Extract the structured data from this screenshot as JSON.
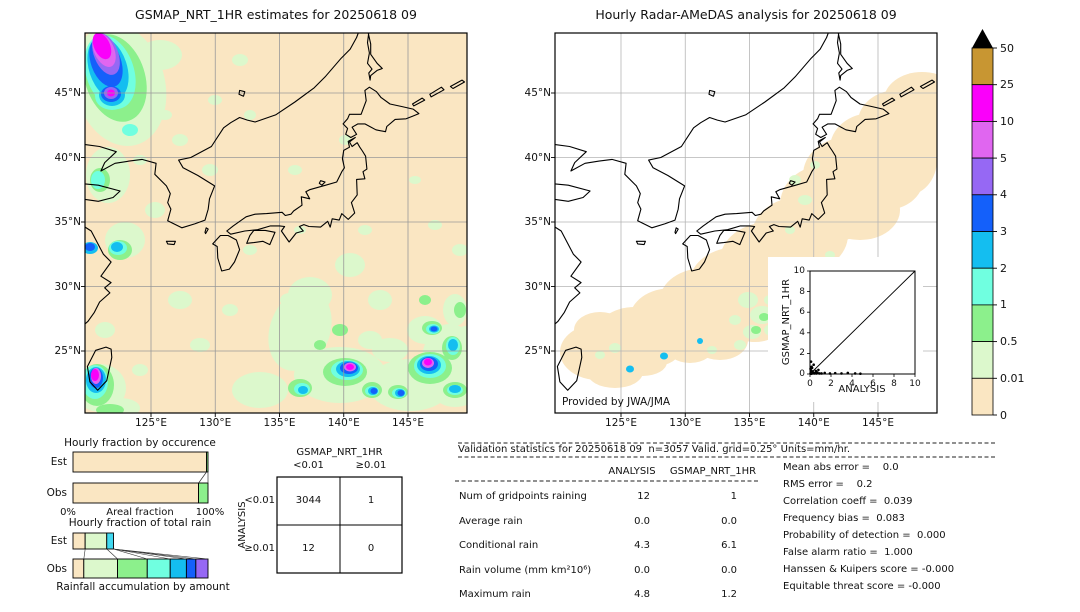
{
  "page": {
    "left_map": {
      "title": "GSMAP_NRT_1HR estimates for 20250618 09",
      "x_ticks": [
        "125°E",
        "130°E",
        "135°E",
        "140°E",
        "145°E"
      ],
      "y_ticks": [
        "45°N",
        "40°N",
        "35°N",
        "30°N",
        "25°N"
      ]
    },
    "right_map": {
      "title": "Hourly Radar-AMeDAS analysis for 20250618 09",
      "x_ticks": [
        "125°E",
        "130°E",
        "135°E",
        "140°E",
        "145°E"
      ],
      "y_ticks": [
        "45°N",
        "40°N",
        "35°N",
        "30°N",
        "25°N"
      ],
      "credit": "Provided by JWA/JMA"
    },
    "colorbar": {
      "tick_labels": [
        "50",
        "25",
        "10",
        "5",
        "4",
        "3",
        "2",
        "1",
        "0.5",
        "0.01",
        "0"
      ],
      "colors_top_to_bottom": [
        "#c89632",
        "#fa00fa",
        "#e066f0",
        "#9668f4",
        "#1460fa",
        "#14bef0",
        "#70ffe0",
        "#8cf08c",
        "#dcf8cc",
        "#fae6c2"
      ]
    }
  },
  "chart_data": [
    {
      "id": "occurrence",
      "type": "bar",
      "title": "Hourly fraction by occurence",
      "xlabel": "Areal fraction",
      "x_axis_tick_labels": [
        "0%",
        "100%"
      ],
      "categories": [
        "Est",
        "Obs"
      ],
      "series": [
        {
          "name": "Est",
          "segments": [
            {
              "color": "#fae6c2",
              "percent": 98.9
            },
            {
              "color": "#8cf08c",
              "percent": 1.1
            }
          ]
        },
        {
          "name": "Obs",
          "segments": [
            {
              "color": "#fae6c2",
              "percent": 93.0
            },
            {
              "color": "#8cf08c",
              "percent": 7.0
            }
          ]
        }
      ]
    },
    {
      "id": "total_rain",
      "type": "bar",
      "title": "Hourly fraction of total rain",
      "xlabel": "Rainfall accumulation by amount",
      "categories": [
        "Est",
        "Obs"
      ],
      "series": [
        {
          "name": "Est",
          "segments": [
            {
              "color": "#fae6c2",
              "percent": 9
            },
            {
              "color": "#dcf8cc",
              "percent": 16
            },
            {
              "color": "#40d8f0",
              "percent": 5
            }
          ]
        },
        {
          "name": "Obs",
          "segments": [
            {
              "color": "#fae6c2",
              "percent": 8
            },
            {
              "color": "#dcf8cc",
              "percent": 25
            },
            {
              "color": "#8cf08c",
              "percent": 22
            },
            {
              "color": "#70ffe0",
              "percent": 17
            },
            {
              "color": "#14bef0",
              "percent": 12
            },
            {
              "color": "#1460fa",
              "percent": 7
            },
            {
              "color": "#9668f4",
              "percent": 9
            }
          ]
        }
      ]
    },
    {
      "id": "contingency",
      "type": "table",
      "col_group_label": "GSMAP_NRT_1HR",
      "row_group_label": "ANALYSIS",
      "col_labels": [
        "<0.01",
        "≥0.01"
      ],
      "row_labels": [
        "<0.01",
        "≥0.01"
      ],
      "values": [
        [
          "3044",
          "1"
        ],
        [
          "12",
          "0"
        ]
      ]
    },
    {
      "id": "validation",
      "type": "table",
      "title": "Validation statistics for 20250618 09  n=3057 Valid. grid=0.25° Units=mm/hr.",
      "columns": [
        "ANALYSIS",
        "GSMAP_NRT_1HR"
      ],
      "rows": [
        {
          "label": "Num of gridpoints raining",
          "analysis": "12",
          "gsmap": "1"
        },
        {
          "label": "Average rain",
          "analysis": "0.0",
          "gsmap": "0.0"
        },
        {
          "label": "Conditional rain",
          "analysis": "4.3",
          "gsmap": "6.1"
        },
        {
          "label": "Rain volume (mm km²10⁶)",
          "analysis": "0.0",
          "gsmap": "0.0"
        },
        {
          "label": "Maximum rain",
          "analysis": "4.8",
          "gsmap": "1.2"
        }
      ]
    },
    {
      "id": "scores",
      "type": "table",
      "rows": [
        "Mean abs error =    0.0",
        "RMS error =    0.2",
        "Correlation coeff =  0.039",
        "Frequency bias =  0.083",
        "Probability of detection =  0.000",
        "False alarm ratio =  1.000",
        "Hanssen & Kuipers score = -0.000",
        "Equitable threat score = -0.000"
      ]
    },
    {
      "id": "inset_scatter",
      "type": "scatter",
      "xlabel": "ANALYSIS",
      "ylabel": "GSMAP_NRT_1HR",
      "xlim": [
        0,
        10
      ],
      "ylim": [
        0,
        10
      ],
      "x_tick_labels": [
        "0",
        "2",
        "4",
        "6",
        "8",
        "10"
      ],
      "y_tick_labels": [
        "0",
        "2",
        "4",
        "6",
        "8",
        "10"
      ],
      "identity_line": true,
      "points": [
        [
          0.05,
          0.05
        ],
        [
          0.1,
          0.02
        ],
        [
          0.15,
          0.1
        ],
        [
          0.2,
          0.05
        ],
        [
          0.1,
          0.2
        ],
        [
          0.3,
          0.1
        ],
        [
          0.25,
          0.25
        ],
        [
          0.4,
          0.05
        ],
        [
          0.1,
          0.35
        ],
        [
          0.5,
          0.1
        ],
        [
          0.6,
          0.05
        ],
        [
          0.05,
          0.5
        ],
        [
          0.7,
          0.15
        ],
        [
          0.9,
          0.05
        ],
        [
          0.2,
          0.6
        ],
        [
          1.1,
          0.05
        ],
        [
          1.4,
          0.1
        ],
        [
          1.9,
          0.05
        ],
        [
          2.4,
          0.08
        ],
        [
          3.0,
          0.05
        ],
        [
          3.6,
          0.1
        ],
        [
          4.3,
          0.05
        ],
        [
          4.8,
          0.03
        ],
        [
          0.1,
          1.2
        ],
        [
          0.35,
          0.9
        ],
        [
          0.15,
          0.7
        ],
        [
          0.55,
          0.3
        ],
        [
          0.8,
          0.4
        ]
      ]
    }
  ]
}
